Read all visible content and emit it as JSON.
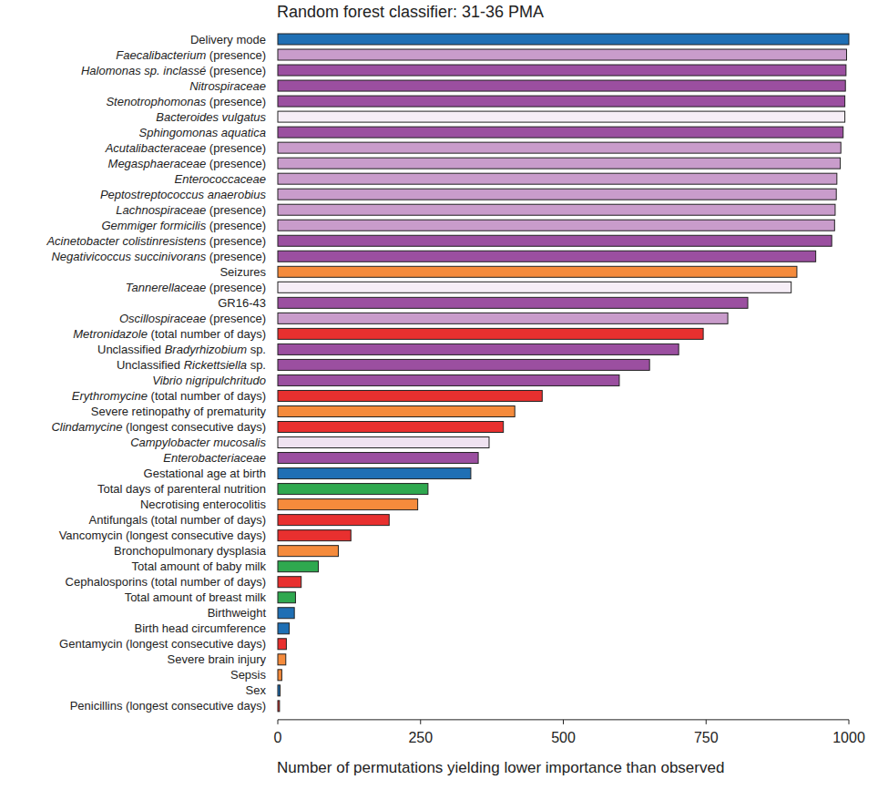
{
  "chart_data": {
    "type": "bar",
    "orientation": "horizontal",
    "title": "Random forest classifier: 31-36 PMA",
    "x_label": "Number of permutations yielding lower importance than observed",
    "categories": [
      "Delivery mode",
      "Faecalibacterium (presence)",
      "Halomonas sp. inclassé (presence)",
      "Nitrospiraceae",
      "Stenotrophomonas (presence)",
      "Bacteroides vulgatus",
      "Sphingomonas aquatica",
      "Acutalibacteraceae (presence)",
      "Megasphaeraceae (presence)",
      "Enterococcaceae",
      "Peptostreptococcus anaerobius",
      "Lachnospiraceae (presence)",
      "Gemmiger formicilis (presence)",
      "Acinetobacter colistinresistens (presence)",
      "Negativicoccus succinivorans (presence)",
      "Seizures",
      "Tannerellaceae (presence)",
      "GR16-43",
      "Oscillospiraceae (presence)",
      "Metronidazole (total number of days)",
      "Unclassified Bradyrhizobium sp.",
      "Unclassified Rickettsiella sp.",
      "Vibrio nigripulchritudo",
      "Erythromycine (total number of days)",
      "Severe retinopathy of prematurity",
      "Clindamycine (longest consecutive days)",
      "Campylobacter mucosalis",
      "Enterobacteriaceae",
      "Gestational age at birth",
      "Total days of parenteral nutrition",
      "Necrotising enterocolitis",
      "Antifungals (total number of days)",
      "Vancomycin (longest consecutive days)",
      "Bronchopulmonary dysplasia",
      "Total amount of baby milk",
      "Cephalosporins (total number of days)",
      "Total amount of breast milk",
      "Birthweight",
      "Birth head circumference",
      "Gentamycin (longest consecutive days)",
      "Severe brain injury",
      "Sepsis",
      "Sex",
      "Penicillins (longest consecutive days)"
    ],
    "values": [
      1000,
      996,
      995,
      994,
      993,
      993,
      990,
      986,
      985,
      979,
      978,
      976,
      975,
      970,
      942,
      909,
      899,
      823,
      788,
      745,
      702,
      651,
      598,
      463,
      415,
      395,
      370,
      351,
      338,
      263,
      245,
      195,
      128,
      106,
      71,
      41,
      31,
      29,
      20,
      15,
      14,
      7,
      4,
      3
    ],
    "colors": [
      "#1f6fb4",
      "#c99ccb",
      "#9b4fa0",
      "#9b4fa0",
      "#9b4fa0",
      "#f6eef7",
      "#9b4fa0",
      "#c99ccb",
      "#c99ccb",
      "#c99ccb",
      "#c99ccb",
      "#c99ccb",
      "#c99ccb",
      "#9b4fa0",
      "#9b4fa0",
      "#f58b3c",
      "#f6eef7",
      "#9b4fa0",
      "#c99ccb",
      "#e8302f",
      "#9b4fa0",
      "#9b4fa0",
      "#9b4fa0",
      "#e8302f",
      "#f58b3c",
      "#e8302f",
      "#efe2f0",
      "#9b4fa0",
      "#1f6fb4",
      "#2fa84f",
      "#f58b3c",
      "#e8302f",
      "#e8302f",
      "#f58b3c",
      "#2fa84f",
      "#e8302f",
      "#2fa84f",
      "#1f6fb4",
      "#1f6fb4",
      "#e8302f",
      "#f58b3c",
      "#f58b3c",
      "#1f6fb4",
      "#e8302f"
    ],
    "xlim": [
      0,
      1000
    ],
    "xticks": [
      0,
      250,
      500,
      750,
      1000
    ],
    "grid": false
  }
}
